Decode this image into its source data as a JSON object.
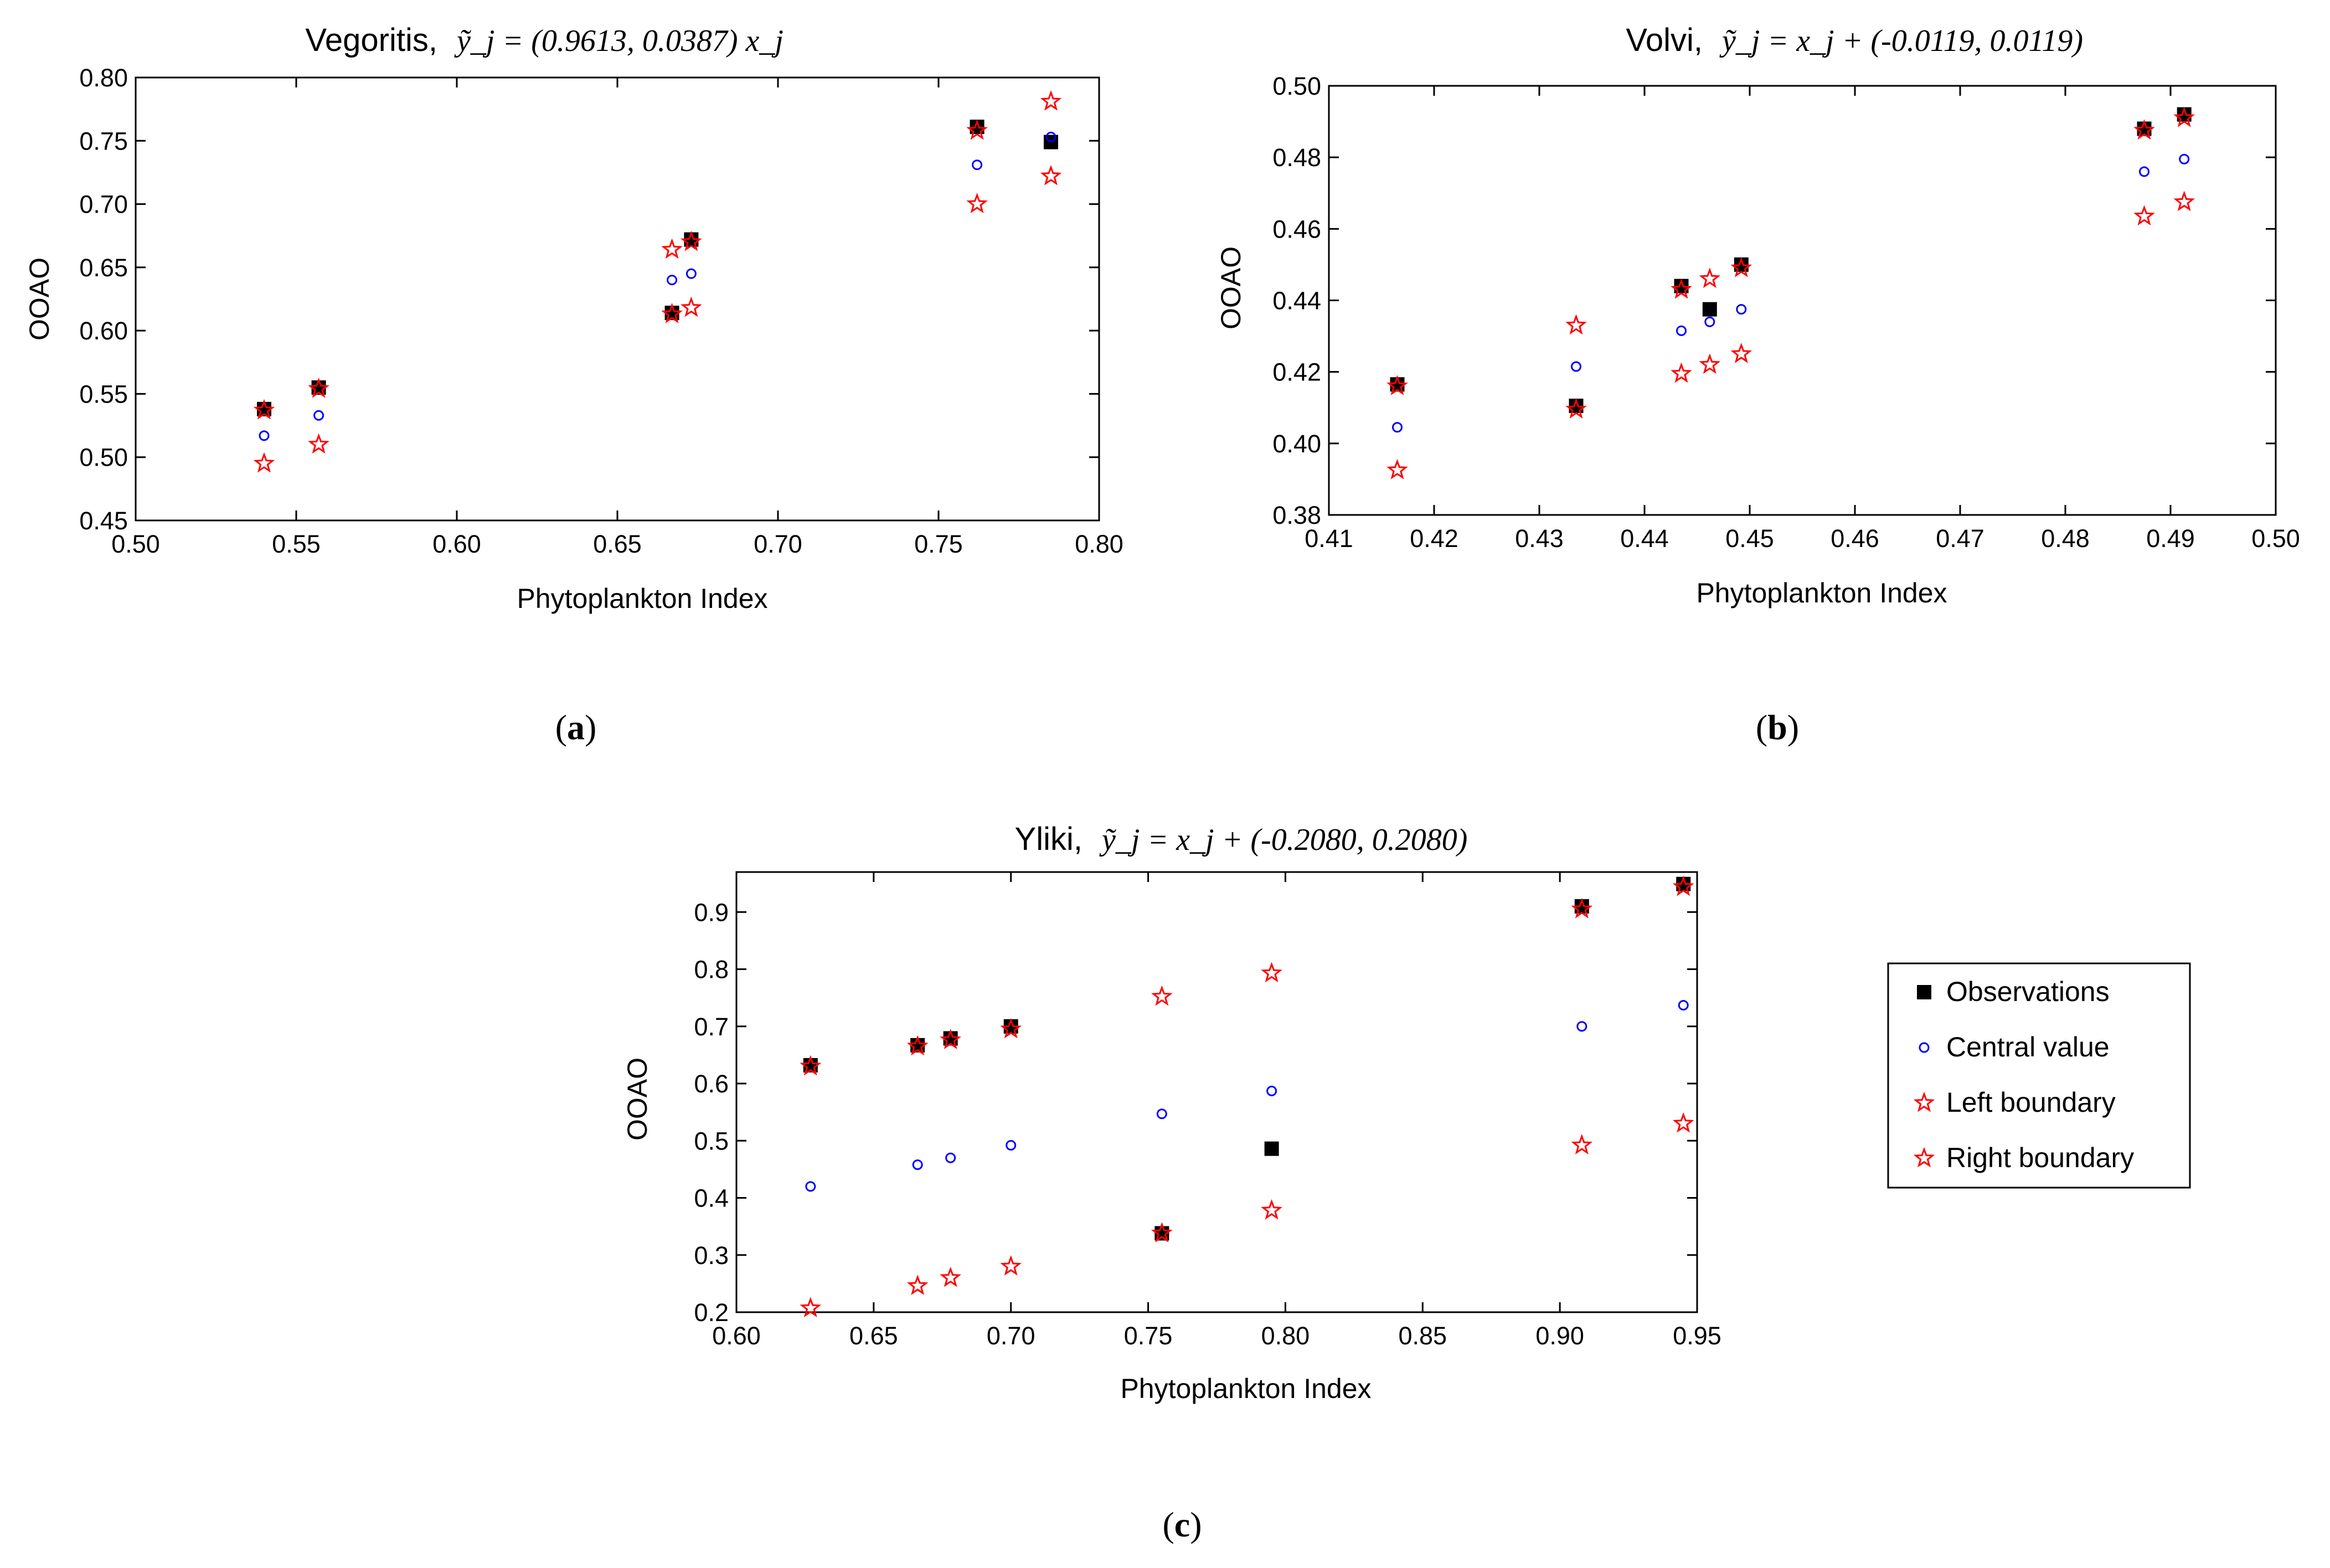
{
  "chart_data": [
    {
      "type": "scatter",
      "title": "Vegoritis,",
      "equation": "ỹ_j = (0.9613, 0.0387) x_j",
      "xlabel": "Phytoplankton Index",
      "ylabel": "OOAO",
      "xlim": [
        0.5,
        0.8
      ],
      "ylim": [
        0.45,
        0.8
      ],
      "xticks": [
        "0.50",
        "0.55",
        "0.60",
        "0.65",
        "0.70",
        "0.75",
        "0.80"
      ],
      "yticks": [
        "0.45",
        "0.50",
        "0.55",
        "0.60",
        "0.65",
        "0.70",
        "0.75",
        "0.80"
      ],
      "caption": "a",
      "series": [
        {
          "name": "Observations",
          "x": [
            0.54,
            0.557,
            0.667,
            0.673,
            0.762,
            0.785
          ],
          "y": [
            0.538,
            0.555,
            0.614,
            0.672,
            0.761,
            0.749
          ]
        },
        {
          "name": "Central value",
          "x": [
            0.54,
            0.557,
            0.667,
            0.673,
            0.762,
            0.785
          ],
          "y": [
            0.517,
            0.533,
            0.64,
            0.645,
            0.731,
            0.753
          ]
        },
        {
          "name": "Left boundary",
          "x": [
            0.54,
            0.557,
            0.667,
            0.673,
            0.762,
            0.785
          ],
          "y": [
            0.495,
            0.51,
            0.613,
            0.618,
            0.7,
            0.722
          ]
        },
        {
          "name": "Right boundary",
          "x": [
            0.54,
            0.557,
            0.667,
            0.673,
            0.762,
            0.785
          ],
          "y": [
            0.537,
            0.554,
            0.664,
            0.67,
            0.758,
            0.781
          ]
        }
      ]
    },
    {
      "type": "scatter",
      "title": "Volvi,",
      "equation": "ỹ_j = x_j + (-0.0119, 0.0119)",
      "xlabel": "Phytoplankton Index",
      "ylabel": "OOAO",
      "xlim": [
        0.41,
        0.5
      ],
      "ylim": [
        0.38,
        0.5
      ],
      "xticks": [
        "0.41",
        "0.42",
        "0.43",
        "0.44",
        "0.45",
        "0.46",
        "0.47",
        "0.48",
        "0.49",
        "0.50"
      ],
      "yticks": [
        "0.38",
        "0.40",
        "0.42",
        "0.44",
        "0.46",
        "0.48",
        "0.50"
      ],
      "caption": "b",
      "series": [
        {
          "name": "Observations",
          "x": [
            0.4165,
            0.4335,
            0.4435,
            0.4462,
            0.4492,
            0.4875,
            0.4913
          ],
          "y": [
            0.4165,
            0.4105,
            0.444,
            0.4375,
            0.45,
            0.488,
            0.492
          ]
        },
        {
          "name": "Central value",
          "x": [
            0.4165,
            0.4335,
            0.4435,
            0.4462,
            0.4492,
            0.4875,
            0.4913
          ],
          "y": [
            0.4045,
            0.4215,
            0.4315,
            0.434,
            0.4375,
            0.476,
            0.4795
          ]
        },
        {
          "name": "Left boundary",
          "x": [
            0.4165,
            0.4335,
            0.4435,
            0.4462,
            0.4492,
            0.4875,
            0.4913
          ],
          "y": [
            0.3925,
            0.4095,
            0.4195,
            0.422,
            0.425,
            0.4635,
            0.4675
          ]
        },
        {
          "name": "Right boundary",
          "x": [
            0.4165,
            0.4335,
            0.4435,
            0.4462,
            0.4492,
            0.4875,
            0.4913
          ],
          "y": [
            0.416,
            0.433,
            0.443,
            0.446,
            0.449,
            0.4875,
            0.491
          ]
        }
      ]
    },
    {
      "type": "scatter",
      "title": "Yliki,",
      "equation": "ỹ_j = x_j + (-0.2080,  0.2080)",
      "xlabel": "Phytoplankton Index",
      "ylabel": "OOAO",
      "xlim": [
        0.6,
        0.95
      ],
      "ylim": [
        0.2,
        0.97
      ],
      "xticks": [
        "0.60",
        "0.65",
        "0.70",
        "0.75",
        "0.80",
        "0.85",
        "0.90",
        "0.95"
      ],
      "yticks": [
        "0.2",
        "0.3",
        "0.4",
        "0.5",
        "0.6",
        "0.7",
        "0.8",
        "0.9"
      ],
      "caption": "c",
      "series": [
        {
          "name": "Observations",
          "x": [
            0.627,
            0.666,
            0.678,
            0.7,
            0.755,
            0.795,
            0.908,
            0.945
          ],
          "y": [
            0.632,
            0.667,
            0.679,
            0.7,
            0.338,
            0.486,
            0.91,
            0.949
          ]
        },
        {
          "name": "Central value",
          "x": [
            0.627,
            0.666,
            0.678,
            0.7,
            0.755,
            0.795,
            0.908,
            0.945
          ],
          "y": [
            0.42,
            0.458,
            0.47,
            0.492,
            0.547,
            0.587,
            0.7,
            0.737
          ]
        },
        {
          "name": "Left boundary",
          "x": [
            0.627,
            0.666,
            0.678,
            0.7,
            0.755,
            0.795,
            0.908,
            0.945
          ],
          "y": [
            0.207,
            0.246,
            0.26,
            0.28,
            0.338,
            0.378,
            0.492,
            0.53
          ]
        },
        {
          "name": "Right boundary",
          "x": [
            0.627,
            0.666,
            0.678,
            0.7,
            0.755,
            0.795,
            0.908,
            0.945
          ],
          "y": [
            0.63,
            0.665,
            0.676,
            0.695,
            0.752,
            0.793,
            0.905,
            0.944
          ]
        }
      ]
    }
  ],
  "legend": {
    "items": [
      {
        "label": "Observations",
        "marker": "square"
      },
      {
        "label": "Central value",
        "marker": "circle"
      },
      {
        "label": "Left boundary",
        "marker": "star"
      },
      {
        "label": "Right boundary",
        "marker": "star"
      }
    ]
  },
  "colors": {
    "observations": "#000000",
    "central": "#0000ff",
    "boundary": "#ff0000"
  }
}
